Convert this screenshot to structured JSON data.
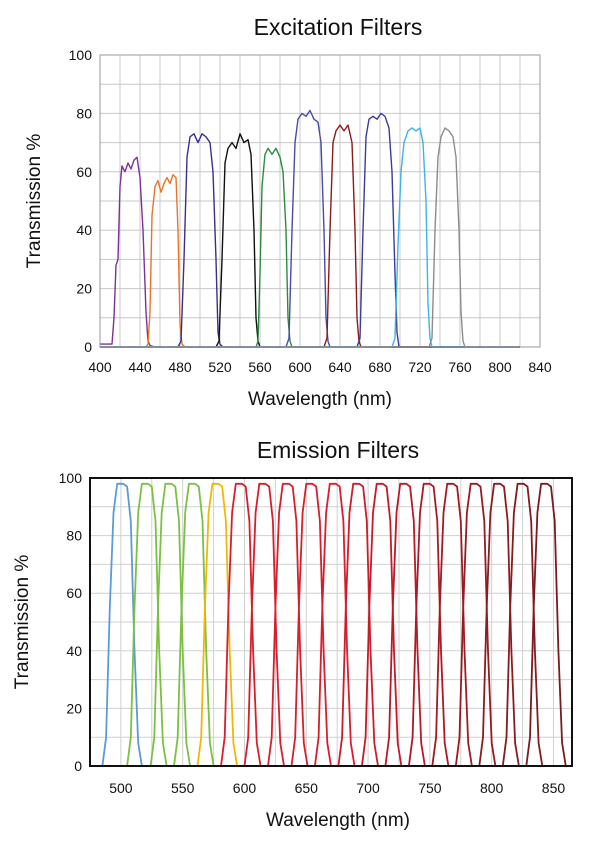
{
  "chart_data": [
    {
      "type": "line",
      "title": "Excitation Filters",
      "xlabel": "Wavelength (nm)",
      "ylabel": "Transmission %",
      "xlim": [
        400,
        840
      ],
      "ylim": [
        0,
        100
      ],
      "xticks": [
        "400",
        "440",
        "480",
        "520",
        "560",
        "600",
        "640",
        "680",
        "720",
        "760",
        "800",
        "840"
      ],
      "yticks": [
        "0",
        "20",
        "40",
        "60",
        "80",
        "100"
      ],
      "grid": true,
      "legend": "none",
      "series": [
        {
          "color": "#7b3294",
          "x": [
            400,
            412,
            414,
            416,
            418,
            420,
            422,
            425,
            428,
            431,
            434,
            437,
            440,
            443,
            446,
            448,
            450,
            455,
            820
          ],
          "y": [
            1,
            1,
            10,
            28,
            30,
            55,
            62,
            60,
            63,
            61,
            64,
            65,
            58,
            40,
            12,
            2,
            0.5,
            0,
            0
          ]
        },
        {
          "color": "#e8742c",
          "x": [
            400,
            446,
            448,
            450,
            452,
            455,
            458,
            461,
            464,
            467,
            470,
            473,
            476,
            478,
            480,
            482,
            485,
            820
          ],
          "y": [
            0,
            0,
            1,
            12,
            45,
            55,
            57,
            53,
            56,
            58,
            56,
            59,
            58,
            40,
            8,
            1,
            0,
            0
          ]
        },
        {
          "color": "#3a2f8c",
          "x": [
            400,
            478,
            481,
            484,
            487,
            490,
            494,
            498,
            502,
            506,
            510,
            513,
            516,
            518,
            520,
            523,
            820
          ],
          "y": [
            0,
            0,
            2,
            30,
            65,
            72,
            73,
            70,
            73,
            72,
            70,
            60,
            30,
            5,
            1,
            0,
            0
          ]
        },
        {
          "color": "#111111",
          "x": [
            400,
            516,
            519,
            522,
            525,
            528,
            532,
            536,
            540,
            544,
            548,
            551,
            554,
            556,
            558,
            560,
            820
          ],
          "y": [
            0,
            0,
            2,
            30,
            63,
            68,
            70,
            68,
            73,
            70,
            71,
            66,
            40,
            10,
            2,
            0,
            0
          ]
        },
        {
          "color": "#2a8c3e",
          "x": [
            400,
            556,
            558,
            560,
            562,
            565,
            568,
            572,
            576,
            580,
            583,
            586,
            588,
            590,
            592,
            820
          ],
          "y": [
            0,
            0,
            2,
            25,
            55,
            66,
            68,
            66,
            68,
            65,
            60,
            40,
            10,
            2,
            0,
            0
          ]
        },
        {
          "color": "#4a4aa8",
          "x": [
            400,
            586,
            589,
            592,
            595,
            598,
            602,
            606,
            610,
            614,
            618,
            621,
            624,
            626,
            628,
            630,
            820
          ],
          "y": [
            0,
            0,
            3,
            40,
            70,
            78,
            80,
            79,
            81,
            78,
            77,
            70,
            40,
            10,
            2,
            0,
            0
          ]
        },
        {
          "color": "#8b1a1a",
          "x": [
            400,
            624,
            627,
            630,
            633,
            636,
            640,
            644,
            648,
            652,
            655,
            657,
            659,
            661,
            820
          ],
          "y": [
            0,
            0,
            3,
            40,
            70,
            74,
            76,
            74,
            76,
            70,
            40,
            10,
            2,
            0,
            0
          ]
        },
        {
          "color": "#3b3b9c",
          "x": [
            400,
            657,
            660,
            663,
            666,
            669,
            673,
            677,
            681,
            685,
            689,
            692,
            695,
            697,
            699,
            820
          ],
          "y": [
            0,
            0,
            3,
            40,
            72,
            78,
            79,
            78,
            80,
            79,
            75,
            60,
            25,
            5,
            0,
            0
          ]
        },
        {
          "color": "#3cb4e8",
          "x": [
            400,
            692,
            695,
            698,
            701,
            704,
            708,
            712,
            716,
            720,
            723,
            726,
            728,
            730,
            732,
            820
          ],
          "y": [
            0,
            0,
            3,
            35,
            60,
            70,
            74,
            75,
            74,
            75,
            70,
            50,
            15,
            3,
            0,
            0
          ]
        },
        {
          "color": "#8c8c8c",
          "x": [
            400,
            729,
            732,
            735,
            738,
            741,
            745,
            749,
            753,
            756,
            759,
            761,
            763,
            765,
            820
          ],
          "y": [
            0,
            0,
            3,
            40,
            65,
            72,
            75,
            74,
            72,
            65,
            40,
            12,
            2,
            0,
            0
          ]
        }
      ]
    },
    {
      "type": "line",
      "title": "Emission Filters",
      "xlabel": "Wavelength (nm)",
      "ylabel": "Transmission %",
      "xlim": [
        475,
        865
      ],
      "ylim": [
        0,
        100
      ],
      "xticks": [
        "500",
        "550",
        "600",
        "650",
        "700",
        "750",
        "800",
        "850"
      ],
      "yticks": [
        "0",
        "20",
        "40",
        "60",
        "80",
        "100"
      ],
      "grid": true,
      "legend": "none",
      "series": [
        {
          "color": "#5b9bd5",
          "x": [
            485,
            488,
            491,
            494,
            497,
            502,
            505,
            508,
            511,
            514,
            517
          ],
          "y": [
            0,
            10,
            55,
            88,
            98,
            98,
            97,
            85,
            40,
            8,
            0
          ]
        },
        {
          "color": "#7ac143",
          "x": [
            505,
            508,
            511,
            514,
            517,
            522,
            525,
            528,
            531,
            534,
            537
          ],
          "y": [
            0,
            10,
            55,
            88,
            98,
            98,
            97,
            85,
            40,
            8,
            0
          ]
        },
        {
          "color": "#7ac143",
          "x": [
            524,
            527,
            530,
            533,
            536,
            541,
            544,
            547,
            550,
            553,
            556
          ],
          "y": [
            0,
            10,
            55,
            88,
            98,
            98,
            97,
            85,
            40,
            8,
            0
          ]
        },
        {
          "color": "#7ac143",
          "x": [
            543,
            546,
            549,
            552,
            555,
            560,
            563,
            566,
            569,
            572,
            575
          ],
          "y": [
            0,
            10,
            55,
            88,
            98,
            98,
            97,
            85,
            40,
            8,
            0
          ]
        },
        {
          "color": "#f2b705",
          "x": [
            562,
            565,
            568,
            571,
            574,
            579,
            582,
            585,
            588,
            591,
            594
          ],
          "y": [
            0,
            10,
            55,
            88,
            98,
            98,
            97,
            85,
            40,
            8,
            0
          ]
        },
        {
          "color": "#d81e2c",
          "x": [
            581,
            584,
            587,
            590,
            593,
            598,
            601,
            604,
            607,
            610,
            613
          ],
          "y": [
            0,
            10,
            55,
            88,
            98,
            98,
            97,
            85,
            40,
            8,
            0
          ]
        },
        {
          "color": "#d81e2c",
          "x": [
            600,
            603,
            606,
            609,
            612,
            617,
            620,
            623,
            626,
            629,
            632
          ],
          "y": [
            0,
            10,
            55,
            88,
            98,
            98,
            97,
            85,
            40,
            8,
            0
          ]
        },
        {
          "color": "#d81e2c",
          "x": [
            619,
            622,
            625,
            628,
            631,
            636,
            639,
            642,
            645,
            648,
            651
          ],
          "y": [
            0,
            10,
            55,
            88,
            98,
            98,
            97,
            85,
            40,
            8,
            0
          ]
        },
        {
          "color": "#d81e2c",
          "x": [
            638,
            641,
            644,
            647,
            650,
            655,
            658,
            661,
            664,
            667,
            670
          ],
          "y": [
            0,
            10,
            55,
            88,
            98,
            98,
            97,
            85,
            40,
            8,
            0
          ]
        },
        {
          "color": "#d81e2c",
          "x": [
            657,
            660,
            663,
            666,
            669,
            674,
            677,
            680,
            683,
            686,
            689
          ],
          "y": [
            0,
            10,
            55,
            88,
            98,
            98,
            97,
            85,
            40,
            8,
            0
          ]
        },
        {
          "color": "#cc1c2a",
          "x": [
            676,
            679,
            682,
            685,
            688,
            693,
            696,
            699,
            702,
            705,
            708
          ],
          "y": [
            0,
            10,
            55,
            88,
            98,
            98,
            97,
            85,
            40,
            8,
            0
          ]
        },
        {
          "color": "#c41a28",
          "x": [
            695,
            698,
            701,
            704,
            707,
            712,
            715,
            718,
            721,
            724,
            727
          ],
          "y": [
            0,
            10,
            55,
            88,
            98,
            98,
            97,
            85,
            40,
            8,
            0
          ]
        },
        {
          "color": "#b81a26",
          "x": [
            714,
            717,
            720,
            723,
            726,
            731,
            734,
            737,
            740,
            743,
            746
          ],
          "y": [
            0,
            10,
            55,
            88,
            98,
            98,
            97,
            85,
            40,
            8,
            0
          ]
        },
        {
          "color": "#ab1a24",
          "x": [
            733,
            736,
            739,
            742,
            745,
            750,
            753,
            756,
            759,
            762,
            765
          ],
          "y": [
            0,
            10,
            55,
            88,
            98,
            98,
            97,
            85,
            40,
            8,
            0
          ]
        },
        {
          "color": "#a01a22",
          "x": [
            752,
            755,
            758,
            761,
            764,
            769,
            772,
            775,
            778,
            781,
            784
          ],
          "y": [
            0,
            10,
            55,
            88,
            98,
            98,
            97,
            85,
            40,
            8,
            0
          ]
        },
        {
          "color": "#961b21",
          "x": [
            771,
            774,
            777,
            780,
            783,
            788,
            791,
            794,
            797,
            800,
            803
          ],
          "y": [
            0,
            10,
            55,
            88,
            98,
            98,
            97,
            85,
            40,
            8,
            0
          ]
        },
        {
          "color": "#8c1b20",
          "x": [
            790,
            793,
            796,
            799,
            802,
            807,
            810,
            813,
            816,
            819,
            822
          ],
          "y": [
            0,
            10,
            55,
            88,
            98,
            98,
            97,
            85,
            40,
            8,
            0
          ]
        },
        {
          "color": "#831b1f",
          "x": [
            809,
            812,
            815,
            818,
            821,
            826,
            829,
            832,
            835,
            838,
            841
          ],
          "y": [
            0,
            10,
            55,
            88,
            98,
            98,
            97,
            85,
            40,
            8,
            0
          ]
        },
        {
          "color": "#7a1a1e",
          "x": [
            828,
            831,
            834,
            837,
            840,
            845,
            848,
            851,
            854,
            857,
            860
          ],
          "y": [
            0,
            10,
            55,
            88,
            98,
            98,
            97,
            85,
            40,
            8,
            0
          ]
        }
      ]
    }
  ]
}
